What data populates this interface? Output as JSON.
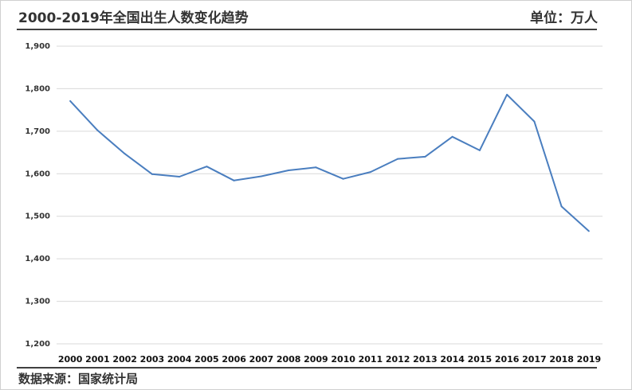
{
  "header": {
    "title": "2000-2019年全国出生人数变化趋势",
    "unit": "单位：万人"
  },
  "footer": {
    "source": "数据来源：国家统计局"
  },
  "colors": {
    "line": "#4a7ebf",
    "grid": "#d9d9d9",
    "rule": "#404040"
  },
  "chart_data": {
    "type": "line",
    "title": "2000-2019年全国出生人数变化趋势",
    "ylabel": "",
    "xlabel": "",
    "ylim": [
      1200,
      1900
    ],
    "yticks": [
      1200,
      1300,
      1400,
      1500,
      1600,
      1700,
      1800,
      1900
    ],
    "ytick_labels": [
      "1,200",
      "1,300",
      "1,400",
      "1,500",
      "1,600",
      "1,700",
      "1,800",
      "1,900"
    ],
    "grid": true,
    "categories": [
      "2000",
      "2001",
      "2002",
      "2003",
      "2004",
      "2005",
      "2006",
      "2007",
      "2008",
      "2009",
      "2010",
      "2011",
      "2012",
      "2013",
      "2014",
      "2015",
      "2016",
      "2017",
      "2018",
      "2019"
    ],
    "series": [
      {
        "values": [
          1771,
          1702,
          1647,
          1599,
          1593,
          1617,
          1584,
          1594,
          1608,
          1615,
          1588,
          1604,
          1635,
          1640,
          1687,
          1655,
          1786,
          1723,
          1523,
          1465
        ]
      }
    ]
  }
}
